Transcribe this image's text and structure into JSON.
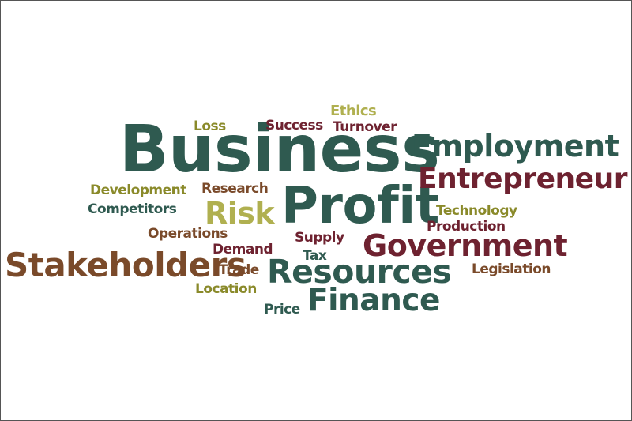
{
  "palette": {
    "teal": "#2f5a50",
    "maroon": "#6e2230",
    "brown": "#7a4a2a",
    "olive": "#8a8a2a",
    "khaki": "#b0b050"
  },
  "words": [
    {
      "id": "business",
      "text": "Business",
      "color": "teal"
    },
    {
      "id": "profit",
      "text": "Profit",
      "color": "teal"
    },
    {
      "id": "employment",
      "text": "Employment",
      "color": "teal"
    },
    {
      "id": "entrepreneur",
      "text": "Entrepreneur",
      "color": "maroon"
    },
    {
      "id": "stakeholders",
      "text": "Stakeholders",
      "color": "brown"
    },
    {
      "id": "government",
      "text": "Government",
      "color": "maroon"
    },
    {
      "id": "resources",
      "text": "Resources",
      "color": "teal"
    },
    {
      "id": "finance",
      "text": "Finance",
      "color": "teal"
    },
    {
      "id": "risk",
      "text": "Risk",
      "color": "khaki"
    },
    {
      "id": "ethics",
      "text": "Ethics",
      "color": "khaki"
    },
    {
      "id": "loss",
      "text": "Loss",
      "color": "olive"
    },
    {
      "id": "success",
      "text": "Success",
      "color": "maroon"
    },
    {
      "id": "turnover",
      "text": "Turnover",
      "color": "maroon"
    },
    {
      "id": "development",
      "text": "Development",
      "color": "olive"
    },
    {
      "id": "research",
      "text": "Research",
      "color": "brown"
    },
    {
      "id": "competitors",
      "text": "Competitors",
      "color": "teal"
    },
    {
      "id": "technology",
      "text": "Technology",
      "color": "olive"
    },
    {
      "id": "production",
      "text": "Production",
      "color": "maroon"
    },
    {
      "id": "operations",
      "text": "Operations",
      "color": "brown"
    },
    {
      "id": "supply",
      "text": "Supply",
      "color": "maroon"
    },
    {
      "id": "demand",
      "text": "Demand",
      "color": "maroon"
    },
    {
      "id": "tax",
      "text": "Tax",
      "color": "teal"
    },
    {
      "id": "trade",
      "text": "Trade",
      "color": "brown"
    },
    {
      "id": "legislation",
      "text": "Legislation",
      "color": "brown"
    },
    {
      "id": "location",
      "text": "Location",
      "color": "olive"
    },
    {
      "id": "price",
      "text": "Price",
      "color": "teal"
    }
  ]
}
